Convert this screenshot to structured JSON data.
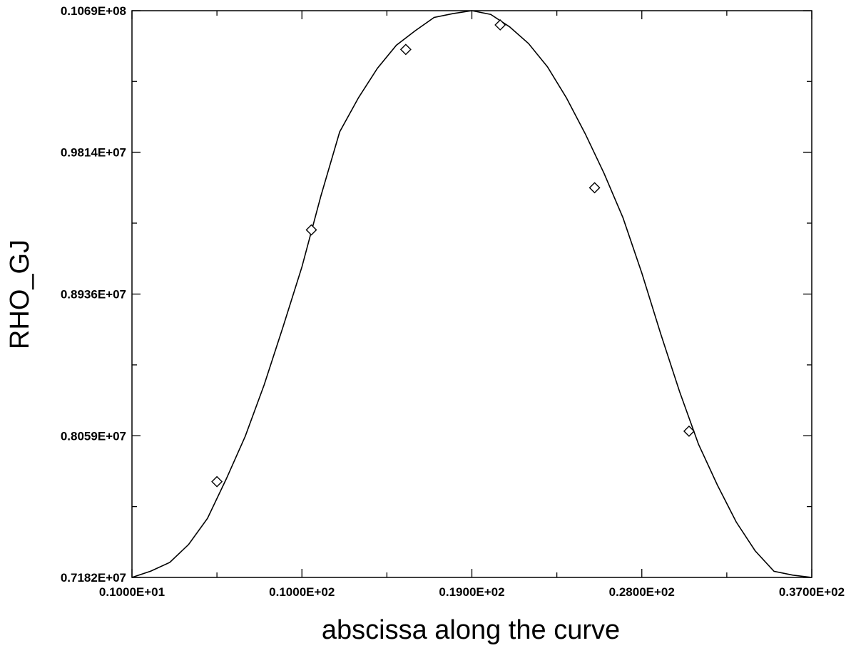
{
  "chart_data": {
    "type": "line",
    "title": "",
    "xlabel": "abscissa along the curve",
    "ylabel": "RHO_GJ",
    "xlim": [
      1,
      37
    ],
    "ylim": [
      7182000,
      10690000
    ],
    "x_ticks": [
      "0.1000E+01",
      "0.1000E+02",
      "0.1900E+02",
      "0.2800E+02",
      "0.3700E+02"
    ],
    "x_tick_values": [
      1,
      10,
      19,
      28,
      37
    ],
    "y_ticks": [
      "0.7182E+07",
      "0.8059E+07",
      "0.8936E+07",
      "0.9814E+07",
      "0.1069E+08"
    ],
    "y_tick_values": [
      7182000,
      8059000,
      8936000,
      9814000,
      10690000
    ],
    "grid": false,
    "legend": "none",
    "line_color": "#000000",
    "series": [
      {
        "marker": "diamond",
        "x": [
          1,
          2,
          3,
          4,
          5,
          6,
          7,
          8,
          9,
          10,
          11,
          12,
          13,
          14,
          15,
          16,
          17,
          18,
          19,
          20,
          21,
          22,
          23,
          24,
          25,
          26,
          27,
          28,
          29,
          30,
          31,
          32,
          33,
          34,
          35,
          36,
          37
        ],
        "y": [
          7182000,
          7221000,
          7275000,
          7386000,
          7548000,
          7793000,
          8056000,
          8374000,
          8733000,
          9104000,
          9541000,
          9940000,
          10152000,
          10334000,
          10476000,
          10566000,
          10648000,
          10672000,
          10690000,
          10667000,
          10590000,
          10487000,
          10343000,
          10152000,
          9929000,
          9683000,
          9409000,
          9066000,
          8690000,
          8332000,
          8007000,
          7754000,
          7525000,
          7347000,
          7220000,
          7196000,
          7182000
        ],
        "marker_points": [
          {
            "x": 5.5,
            "y": 7775000
          },
          {
            "x": 10.5,
            "y": 9333000
          },
          {
            "x": 15.5,
            "y": 10450000
          },
          {
            "x": 20.5,
            "y": 10602000
          },
          {
            "x": 25.5,
            "y": 9594000
          },
          {
            "x": 30.5,
            "y": 8087000
          }
        ]
      }
    ]
  }
}
